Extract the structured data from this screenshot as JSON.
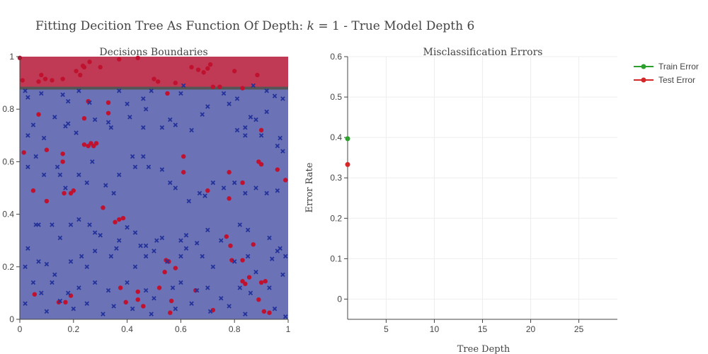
{
  "title": {
    "prefix": "Fitting Decition Tree As Function Of Depth: ",
    "k_symbol": "k",
    "suffix": " = 1 - True Model Depth 6"
  },
  "colors": {
    "class_0": "#23329a",
    "class_1": "#c0112f",
    "region_top": "#c03a55",
    "region_bottom": "#6b72b5",
    "boundary": "#555555",
    "train": "#2ca02c",
    "test": "#d62728",
    "axis": "#444444",
    "grid": "#eeeeee"
  },
  "chart_data": [
    {
      "type": "scatter",
      "title": "Decisions Boundaries",
      "xlim": [
        0,
        1
      ],
      "ylim": [
        0,
        1
      ],
      "x_ticks": [
        "0",
        "0.2",
        "0.4",
        "0.6",
        "0.8",
        "1"
      ],
      "y_ticks": [
        "0",
        "0.2",
        "0.4",
        "0.6",
        "0.8",
        "1"
      ],
      "xlabel": "",
      "ylabel": "",
      "grid": false,
      "boundary_y": 0.88,
      "regions": [
        {
          "from": 0.88,
          "to": 1.0,
          "class": "1"
        },
        {
          "from": 0.0,
          "to": 0.88,
          "class": "0"
        }
      ],
      "series": [
        {
          "class": "1",
          "marker": "circle",
          "points": [
            [
              0.0,
              0.995
            ],
            [
              0.01,
              0.91
            ],
            [
              0.07,
              0.905
            ],
            [
              0.08,
              0.93
            ],
            [
              0.095,
              0.915
            ],
            [
              0.12,
              0.91
            ],
            [
              0.16,
              0.915
            ],
            [
              0.21,
              0.945
            ],
            [
              0.225,
              0.93
            ],
            [
              0.235,
              0.965
            ],
            [
              0.24,
              0.96
            ],
            [
              0.26,
              0.98
            ],
            [
              0.3,
              0.96
            ],
            [
              0.37,
              0.99
            ],
            [
              0.44,
              0.995
            ],
            [
              0.5,
              0.915
            ],
            [
              0.515,
              0.905
            ],
            [
              0.58,
              0.9
            ],
            [
              0.64,
              0.96
            ],
            [
              0.665,
              0.95
            ],
            [
              0.685,
              0.94
            ],
            [
              0.7,
              0.955
            ],
            [
              0.71,
              0.97
            ],
            [
              0.72,
              0.885
            ],
            [
              0.745,
              0.885
            ],
            [
              0.8,
              0.945
            ],
            [
              0.83,
              0.88
            ],
            [
              0.885,
              0.93
            ],
            [
              0.255,
              0.83
            ],
            [
              0.33,
              0.825
            ],
            [
              0.55,
              0.86
            ],
            [
              0.07,
              0.78
            ],
            [
              0.015,
              0.635
            ],
            [
              0.24,
              0.765
            ],
            [
              0.33,
              0.785
            ],
            [
              0.9,
              0.72
            ],
            [
              0.24,
              0.665
            ],
            [
              0.255,
              0.66
            ],
            [
              0.265,
              0.67
            ],
            [
              0.275,
              0.66
            ],
            [
              0.285,
              0.67
            ],
            [
              0.1,
              0.645
            ],
            [
              0.16,
              0.63
            ],
            [
              0.16,
              0.6
            ],
            [
              0.61,
              0.62
            ],
            [
              0.61,
              0.56
            ],
            [
              0.89,
              0.6
            ],
            [
              0.9,
              0.59
            ],
            [
              0.78,
              0.56
            ],
            [
              0.99,
              0.53
            ],
            [
              0.83,
              0.52
            ],
            [
              0.96,
              0.57
            ],
            [
              0.05,
              0.49
            ],
            [
              0.165,
              0.48
            ],
            [
              0.19,
              0.48
            ],
            [
              0.2,
              0.49
            ],
            [
              0.7,
              0.49
            ],
            [
              0.78,
              0.46
            ],
            [
              0.1,
              0.45
            ],
            [
              0.31,
              0.425
            ],
            [
              0.355,
              0.37
            ],
            [
              0.37,
              0.38
            ],
            [
              0.385,
              0.385
            ],
            [
              0.77,
              0.315
            ],
            [
              0.785,
              0.28
            ],
            [
              0.87,
              0.285
            ],
            [
              0.545,
              0.225
            ],
            [
              0.58,
              0.195
            ],
            [
              0.54,
              0.18
            ],
            [
              0.555,
              0.22
            ],
            [
              0.79,
              0.225
            ],
            [
              0.83,
              0.225
            ],
            [
              0.855,
              0.16
            ],
            [
              0.83,
              0.145
            ],
            [
              0.84,
              0.135
            ],
            [
              0.9,
              0.14
            ],
            [
              0.915,
              0.145
            ],
            [
              0.055,
              0.095
            ],
            [
              0.19,
              0.09
            ],
            [
              0.17,
              0.065
            ],
            [
              0.375,
              0.12
            ],
            [
              0.395,
              0.065
            ],
            [
              0.44,
              0.075
            ],
            [
              0.46,
              0.05
            ],
            [
              0.44,
              0.105
            ],
            [
              0.52,
              0.12
            ],
            [
              0.565,
              0.07
            ],
            [
              0.56,
              0.025
            ],
            [
              0.655,
              0.11
            ],
            [
              0.89,
              0.075
            ],
            [
              0.91,
              0.03
            ],
            [
              0.93,
              0.025
            ],
            [
              0.145,
              0.065
            ],
            [
              0.72,
              0.035
            ]
          ]
        },
        {
          "class": "0",
          "marker": "x",
          "points": [
            [
              0.02,
              0.87
            ],
            [
              0.03,
              0.845
            ],
            [
              0.08,
              0.86
            ],
            [
              0.05,
              0.74
            ],
            [
              0.03,
              0.7
            ],
            [
              0.09,
              0.69
            ],
            [
              0.16,
              0.855
            ],
            [
              0.22,
              0.87
            ],
            [
              0.18,
              0.83
            ],
            [
              0.26,
              0.825
            ],
            [
              0.13,
              0.77
            ],
            [
              0.17,
              0.735
            ],
            [
              0.18,
              0.745
            ],
            [
              0.21,
              0.71
            ],
            [
              0.28,
              0.76
            ],
            [
              0.33,
              0.75
            ],
            [
              0.34,
              0.73
            ],
            [
              0.37,
              0.87
            ],
            [
              0.4,
              0.82
            ],
            [
              0.41,
              0.77
            ],
            [
              0.46,
              0.84
            ],
            [
              0.47,
              0.8
            ],
            [
              0.49,
              0.87
            ],
            [
              0.46,
              0.73
            ],
            [
              0.53,
              0.73
            ],
            [
              0.56,
              0.76
            ],
            [
              0.58,
              0.74
            ],
            [
              0.6,
              0.86
            ],
            [
              0.61,
              0.89
            ],
            [
              0.64,
              0.72
            ],
            [
              0.68,
              0.78
            ],
            [
              0.7,
              0.81
            ],
            [
              0.76,
              0.86
            ],
            [
              0.78,
              0.82
            ],
            [
              0.81,
              0.84
            ],
            [
              0.87,
              0.89
            ],
            [
              0.92,
              0.87
            ],
            [
              0.95,
              0.85
            ],
            [
              0.98,
              0.84
            ],
            [
              0.92,
              0.79
            ],
            [
              0.86,
              0.77
            ],
            [
              0.88,
              0.76
            ],
            [
              0.84,
              0.73
            ],
            [
              0.81,
              0.72
            ],
            [
              0.84,
              0.7
            ],
            [
              0.9,
              0.7
            ],
            [
              0.97,
              0.69
            ],
            [
              0.96,
              0.66
            ],
            [
              0.98,
              0.64
            ],
            [
              0.03,
              0.58
            ],
            [
              0.06,
              0.62
            ],
            [
              0.09,
              0.55
            ],
            [
              0.15,
              0.55
            ],
            [
              0.14,
              0.58
            ],
            [
              0.17,
              0.5
            ],
            [
              0.22,
              0.55
            ],
            [
              0.25,
              0.52
            ],
            [
              0.27,
              0.6
            ],
            [
              0.32,
              0.51
            ],
            [
              0.35,
              0.48
            ],
            [
              0.37,
              0.55
            ],
            [
              0.42,
              0.62
            ],
            [
              0.43,
              0.58
            ],
            [
              0.46,
              0.62
            ],
            [
              0.48,
              0.58
            ],
            [
              0.53,
              0.57
            ],
            [
              0.56,
              0.52
            ],
            [
              0.58,
              0.5
            ],
            [
              0.63,
              0.45
            ],
            [
              0.67,
              0.48
            ],
            [
              0.69,
              0.47
            ],
            [
              0.72,
              0.52
            ],
            [
              0.76,
              0.5
            ],
            [
              0.8,
              0.52
            ],
            [
              0.84,
              0.48
            ],
            [
              0.88,
              0.5
            ],
            [
              0.92,
              0.48
            ],
            [
              0.96,
              0.49
            ],
            [
              0.06,
              0.36
            ],
            [
              0.07,
              0.36
            ],
            [
              0.12,
              0.36
            ],
            [
              0.15,
              0.31
            ],
            [
              0.19,
              0.36
            ],
            [
              0.22,
              0.38
            ],
            [
              0.26,
              0.36
            ],
            [
              0.28,
              0.33
            ],
            [
              0.3,
              0.32
            ],
            [
              0.37,
              0.3
            ],
            [
              0.4,
              0.35
            ],
            [
              0.43,
              0.33
            ],
            [
              0.45,
              0.28
            ],
            [
              0.47,
              0.28
            ],
            [
              0.51,
              0.3
            ],
            [
              0.53,
              0.31
            ],
            [
              0.6,
              0.3
            ],
            [
              0.62,
              0.32
            ],
            [
              0.66,
              0.29
            ],
            [
              0.7,
              0.34
            ],
            [
              0.75,
              0.3
            ],
            [
              0.82,
              0.36
            ],
            [
              0.85,
              0.34
            ],
            [
              0.93,
              0.31
            ],
            [
              0.03,
              0.27
            ],
            [
              0.02,
              0.2
            ],
            [
              0.07,
              0.22
            ],
            [
              0.1,
              0.21
            ],
            [
              0.13,
              0.17
            ],
            [
              0.19,
              0.22
            ],
            [
              0.23,
              0.24
            ],
            [
              0.25,
              0.2
            ],
            [
              0.28,
              0.26
            ],
            [
              0.34,
              0.24
            ],
            [
              0.36,
              0.27
            ],
            [
              0.43,
              0.2
            ],
            [
              0.47,
              0.24
            ],
            [
              0.5,
              0.26
            ],
            [
              0.55,
              0.22
            ],
            [
              0.6,
              0.24
            ],
            [
              0.62,
              0.27
            ],
            [
              0.68,
              0.24
            ],
            [
              0.72,
              0.2
            ],
            [
              0.8,
              0.22
            ],
            [
              0.85,
              0.24
            ],
            [
              0.88,
              0.18
            ],
            [
              0.94,
              0.23
            ],
            [
              0.97,
              0.27
            ],
            [
              0.05,
              0.14
            ],
            [
              0.08,
              0.1
            ],
            [
              0.12,
              0.14
            ],
            [
              0.18,
              0.1
            ],
            [
              0.22,
              0.12
            ],
            [
              0.28,
              0.14
            ],
            [
              0.33,
              0.11
            ],
            [
              0.4,
              0.14
            ],
            [
              0.47,
              0.11
            ],
            [
              0.5,
              0.08
            ],
            [
              0.57,
              0.12
            ],
            [
              0.6,
              0.14
            ],
            [
              0.66,
              0.11
            ],
            [
              0.7,
              0.12
            ],
            [
              0.75,
              0.08
            ],
            [
              0.82,
              0.12
            ],
            [
              0.86,
              0.1
            ],
            [
              0.93,
              0.12
            ],
            [
              0.98,
              0.17
            ],
            [
              0.02,
              0.06
            ],
            [
              0.1,
              0.03
            ],
            [
              0.15,
              0.07
            ],
            [
              0.2,
              0.04
            ],
            [
              0.25,
              0.06
            ],
            [
              0.31,
              0.02
            ],
            [
              0.35,
              0.05
            ],
            [
              0.42,
              0.04
            ],
            [
              0.49,
              0.02
            ],
            [
              0.58,
              0.04
            ],
            [
              0.64,
              0.06
            ],
            [
              0.71,
              0.03
            ],
            [
              0.78,
              0.05
            ],
            [
              0.84,
              0.02
            ],
            [
              0.95,
              0.04
            ],
            [
              0.99,
              0.24
            ],
            [
              0.96,
              0.26
            ],
            [
              0.99,
              0.01
            ]
          ]
        }
      ]
    },
    {
      "type": "line",
      "title": "Misclassification Errors",
      "xlabel": "Tree Depth",
      "ylabel": "Error Rate",
      "xlim": [
        1,
        29
      ],
      "ylim": [
        -0.05,
        0.6
      ],
      "x_ticks": [
        "5",
        "10",
        "15",
        "20",
        "25"
      ],
      "y_ticks": [
        "0",
        "0.1",
        "0.2",
        "0.3",
        "0.4",
        "0.5",
        "0.6"
      ],
      "grid": true,
      "legend": "top-right",
      "series": [
        {
          "name": "Train Error",
          "x": [
            1
          ],
          "y": [
            0.397
          ]
        },
        {
          "name": "Test Error",
          "x": [
            1
          ],
          "y": [
            0.333
          ]
        }
      ]
    }
  ]
}
